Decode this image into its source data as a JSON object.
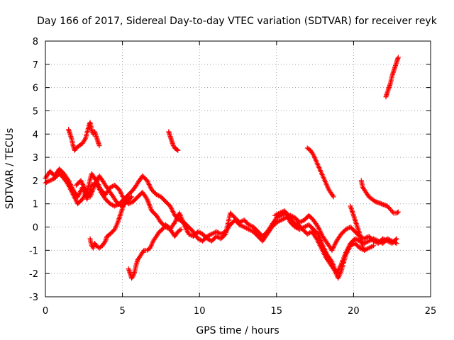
{
  "chart_data": {
    "type": "scatter",
    "title": "Day 166 of 2017, Sidereal Day-to-day VTEC variation (SDTVAR) for receiver reyk",
    "xlabel": "GPS time / hours",
    "ylabel": "SDTVAR / TECUs",
    "xlim": [
      0,
      25
    ],
    "ylim": [
      -3,
      8
    ],
    "xticks": [
      0,
      5,
      10,
      15,
      20,
      25
    ],
    "yticks": [
      -3,
      -2,
      -1,
      0,
      1,
      2,
      3,
      4,
      5,
      6,
      7,
      8
    ],
    "grid": true,
    "marker": "+",
    "color": "#ff0000",
    "series": [
      {
        "name": "arc-main-upper",
        "points": [
          [
            0.0,
            2.1
          ],
          [
            0.3,
            2.4
          ],
          [
            0.6,
            2.2
          ],
          [
            0.9,
            2.5
          ],
          [
            1.2,
            2.3
          ],
          [
            1.5,
            2.0
          ],
          [
            1.8,
            1.6
          ],
          [
            2.1,
            1.3
          ],
          [
            2.4,
            1.7
          ],
          [
            2.7,
            1.2
          ],
          [
            3.0,
            1.8
          ],
          [
            3.3,
            1.9
          ],
          [
            3.6,
            1.5
          ],
          [
            3.9,
            1.2
          ],
          [
            4.2,
            1.0
          ],
          [
            4.5,
            0.9
          ],
          [
            4.8,
            1.0
          ],
          [
            5.1,
            1.2
          ],
          [
            5.4,
            1.4
          ],
          [
            5.7,
            1.6
          ],
          [
            6.0,
            1.9
          ],
          [
            6.3,
            2.2
          ],
          [
            6.6,
            2.0
          ],
          [
            6.9,
            1.6
          ],
          [
            7.2,
            1.4
          ],
          [
            7.5,
            1.3
          ],
          [
            7.8,
            1.1
          ],
          [
            8.1,
            0.9
          ],
          [
            8.4,
            0.5
          ],
          [
            8.7,
            0.3
          ],
          [
            9.0,
            0.2
          ],
          [
            9.3,
            0.0
          ],
          [
            9.6,
            -0.2
          ],
          [
            9.9,
            -0.5
          ],
          [
            10.2,
            -0.6
          ],
          [
            10.5,
            -0.4
          ],
          [
            10.8,
            -0.3
          ],
          [
            11.1,
            -0.2
          ],
          [
            11.4,
            -0.3
          ],
          [
            11.7,
            -0.2
          ],
          [
            12.0,
            0.1
          ],
          [
            12.3,
            0.3
          ],
          [
            12.6,
            0.1
          ],
          [
            12.9,
            0.0
          ],
          [
            13.2,
            -0.1
          ],
          [
            13.5,
            -0.2
          ],
          [
            13.8,
            -0.4
          ],
          [
            14.1,
            -0.6
          ],
          [
            14.4,
            -0.3
          ],
          [
            14.7,
            0.0
          ],
          [
            15.0,
            0.2
          ],
          [
            15.3,
            0.3
          ],
          [
            15.6,
            0.4
          ],
          [
            15.9,
            0.5
          ],
          [
            16.2,
            0.4
          ],
          [
            16.5,
            0.2
          ],
          [
            16.8,
            0.3
          ],
          [
            17.1,
            0.5
          ],
          [
            17.4,
            0.3
          ],
          [
            17.7,
            0.0
          ],
          [
            18.0,
            -0.4
          ],
          [
            18.3,
            -0.7
          ],
          [
            18.6,
            -1.0
          ],
          [
            18.9,
            -0.6
          ],
          [
            19.2,
            -0.3
          ],
          [
            19.5,
            -0.1
          ],
          [
            19.8,
            0.0
          ],
          [
            20.1,
            -0.2
          ],
          [
            20.4,
            -0.4
          ],
          [
            20.7,
            -0.5
          ],
          [
            21.0,
            -0.4
          ],
          [
            21.3,
            -0.6
          ],
          [
            21.6,
            -0.7
          ],
          [
            21.9,
            -0.5
          ],
          [
            22.2,
            -0.6
          ],
          [
            22.5,
            -0.7
          ],
          [
            22.8,
            -0.5
          ]
        ]
      },
      {
        "name": "arc-main-lower",
        "points": [
          [
            0.0,
            1.9
          ],
          [
            0.3,
            2.0
          ],
          [
            0.6,
            2.1
          ],
          [
            0.9,
            2.3
          ],
          [
            1.2,
            2.1
          ],
          [
            1.5,
            1.8
          ],
          [
            1.8,
            1.4
          ],
          [
            2.1,
            1.0
          ],
          [
            2.4,
            1.2
          ],
          [
            2.7,
            1.5
          ],
          [
            3.0,
            2.3
          ],
          [
            3.3,
            2.0
          ],
          [
            3.6,
            1.6
          ],
          [
            3.9,
            1.4
          ],
          [
            4.2,
            1.7
          ],
          [
            4.5,
            1.8
          ],
          [
            4.8,
            1.6
          ],
          [
            5.1,
            1.2
          ],
          [
            5.4,
            1.0
          ],
          [
            5.7,
            1.1
          ],
          [
            6.0,
            1.3
          ],
          [
            6.3,
            1.5
          ],
          [
            6.6,
            1.2
          ],
          [
            6.9,
            0.7
          ],
          [
            7.2,
            0.5
          ],
          [
            7.5,
            0.2
          ],
          [
            7.8,
            0.0
          ],
          [
            8.1,
            -0.1
          ],
          [
            8.4,
            0.2
          ],
          [
            8.7,
            0.6
          ],
          [
            9.0,
            0.1
          ],
          [
            9.3,
            -0.3
          ],
          [
            9.6,
            -0.4
          ],
          [
            9.9,
            -0.2
          ],
          [
            10.2,
            -0.3
          ],
          [
            10.5,
            -0.5
          ],
          [
            10.8,
            -0.6
          ],
          [
            11.1,
            -0.4
          ],
          [
            11.4,
            -0.5
          ],
          [
            11.7,
            -0.3
          ],
          [
            12.0,
            0.6
          ],
          [
            12.3,
            0.4
          ],
          [
            12.6,
            0.2
          ],
          [
            12.9,
            0.3
          ],
          [
            13.2,
            0.1
          ],
          [
            13.5,
            0.0
          ],
          [
            13.8,
            -0.2
          ],
          [
            14.1,
            -0.4
          ],
          [
            14.4,
            -0.2
          ],
          [
            14.7,
            0.1
          ],
          [
            15.0,
            0.4
          ],
          [
            15.3,
            0.5
          ],
          [
            15.6,
            0.6
          ],
          [
            15.9,
            0.2
          ],
          [
            16.2,
            0.0
          ],
          [
            16.5,
            -0.1
          ],
          [
            16.8,
            0.0
          ],
          [
            17.1,
            0.1
          ],
          [
            17.4,
            -0.1
          ],
          [
            17.7,
            -0.3
          ],
          [
            18.0,
            -0.8
          ],
          [
            18.3,
            -1.2
          ],
          [
            18.6,
            -1.5
          ],
          [
            18.9,
            -2.0
          ],
          [
            19.2,
            -1.6
          ],
          [
            19.5,
            -1.1
          ],
          [
            19.8,
            -0.7
          ],
          [
            20.1,
            -0.5
          ],
          [
            20.4,
            -0.6
          ],
          [
            20.7,
            -0.7
          ],
          [
            21.0,
            -0.6
          ],
          [
            21.3,
            -0.5
          ],
          [
            21.6,
            -0.6
          ],
          [
            21.9,
            -0.7
          ],
          [
            22.2,
            -0.5
          ],
          [
            22.5,
            -0.6
          ],
          [
            22.8,
            -0.7
          ]
        ]
      },
      {
        "name": "arc-mid-crossing",
        "points": [
          [
            14.9,
            0.5
          ],
          [
            15.2,
            0.6
          ],
          [
            15.5,
            0.7
          ],
          [
            15.8,
            0.5
          ],
          [
            16.1,
            0.2
          ],
          [
            16.4,
            0.1
          ],
          [
            16.7,
            -0.1
          ],
          [
            17.0,
            -0.3
          ],
          [
            17.3,
            -0.2
          ],
          [
            17.6,
            -0.5
          ],
          [
            17.9,
            -0.9
          ],
          [
            18.2,
            -1.3
          ],
          [
            18.5,
            -1.6
          ],
          [
            18.8,
            -1.9
          ],
          [
            19.0,
            -2.2
          ],
          [
            19.2,
            -1.9
          ],
          [
            19.5,
            -1.2
          ],
          [
            19.8,
            -0.8
          ],
          [
            20.1,
            -0.7
          ],
          [
            20.4,
            -0.9
          ],
          [
            20.7,
            -1.0
          ],
          [
            21.0,
            -0.9
          ],
          [
            21.3,
            -0.8
          ]
        ]
      },
      {
        "name": "arc-rise-2",
        "points": [
          [
            2.0,
            1.8
          ],
          [
            2.3,
            2.0
          ],
          [
            2.6,
            1.6
          ],
          [
            2.9,
            1.3
          ],
          [
            3.2,
            1.8
          ],
          [
            3.5,
            2.2
          ],
          [
            3.8,
            1.9
          ],
          [
            4.1,
            1.6
          ],
          [
            4.4,
            1.3
          ],
          [
            4.7,
            1.0
          ],
          [
            5.0,
            0.9
          ],
          [
            5.3,
            1.1
          ],
          [
            5.6,
            1.3
          ]
        ]
      },
      {
        "name": "arc-top-left",
        "points": [
          [
            1.5,
            4.2
          ],
          [
            1.6,
            4.0
          ],
          [
            1.7,
            3.8
          ],
          [
            1.8,
            3.5
          ],
          [
            1.9,
            3.3
          ],
          [
            2.0,
            3.4
          ],
          [
            2.2,
            3.5
          ],
          [
            2.4,
            3.6
          ],
          [
            2.6,
            3.8
          ],
          [
            2.8,
            4.3
          ],
          [
            2.9,
            4.5
          ],
          [
            3.0,
            4.2
          ],
          [
            3.1,
            4.0
          ],
          [
            3.2,
            4.1
          ],
          [
            3.3,
            3.9
          ],
          [
            3.4,
            3.7
          ],
          [
            3.5,
            3.5
          ]
        ]
      },
      {
        "name": "arc-upper-mid",
        "points": [
          [
            8.0,
            4.1
          ],
          [
            8.1,
            3.9
          ],
          [
            8.2,
            3.7
          ],
          [
            8.3,
            3.5
          ],
          [
            8.4,
            3.4
          ],
          [
            8.5,
            3.35
          ],
          [
            8.6,
            3.3
          ]
        ]
      },
      {
        "name": "arc-low-left",
        "points": [
          [
            2.9,
            -0.5
          ],
          [
            3.0,
            -0.8
          ],
          [
            3.1,
            -0.9
          ],
          [
            3.2,
            -0.7
          ],
          [
            3.3,
            -0.8
          ],
          [
            3.5,
            -0.9
          ],
          [
            3.7,
            -0.8
          ],
          [
            3.9,
            -0.6
          ],
          [
            4.0,
            -0.4
          ],
          [
            4.2,
            -0.3
          ],
          [
            4.5,
            -0.1
          ],
          [
            4.7,
            0.2
          ],
          [
            4.9,
            0.6
          ],
          [
            5.1,
            1.0
          ],
          [
            5.3,
            1.3
          ]
        ]
      },
      {
        "name": "arc-low-center",
        "points": [
          [
            5.4,
            -1.8
          ],
          [
            5.5,
            -2.0
          ],
          [
            5.6,
            -2.2
          ],
          [
            5.7,
            -2.1
          ],
          [
            5.8,
            -1.9
          ],
          [
            5.9,
            -1.6
          ],
          [
            6.0,
            -1.4
          ],
          [
            6.2,
            -1.2
          ],
          [
            6.4,
            -1.0
          ],
          [
            6.6,
            -1.0
          ],
          [
            6.8,
            -0.9
          ],
          [
            7.0,
            -0.6
          ],
          [
            7.2,
            -0.4
          ],
          [
            7.4,
            -0.2
          ],
          [
            7.6,
            -0.1
          ],
          [
            7.8,
            0.1
          ],
          [
            8.0,
            0.0
          ],
          [
            8.2,
            -0.2
          ],
          [
            8.4,
            -0.4
          ],
          [
            8.6,
            -0.2
          ],
          [
            8.8,
            -0.1
          ]
        ]
      },
      {
        "name": "arc-high-right",
        "points": [
          [
            17.0,
            3.4
          ],
          [
            17.2,
            3.3
          ],
          [
            17.4,
            3.1
          ],
          [
            17.6,
            2.8
          ],
          [
            17.8,
            2.5
          ],
          [
            18.0,
            2.2
          ],
          [
            18.2,
            1.9
          ],
          [
            18.4,
            1.6
          ],
          [
            18.6,
            1.4
          ],
          [
            18.7,
            1.3
          ]
        ]
      },
      {
        "name": "arc-right-descend",
        "points": [
          [
            20.5,
            2.0
          ],
          [
            20.6,
            1.7
          ],
          [
            20.8,
            1.5
          ],
          [
            21.0,
            1.3
          ],
          [
            21.2,
            1.2
          ],
          [
            21.4,
            1.1
          ],
          [
            21.6,
            1.05
          ],
          [
            21.8,
            1.0
          ],
          [
            22.0,
            0.95
          ],
          [
            22.2,
            0.9
          ],
          [
            22.4,
            0.75
          ],
          [
            22.6,
            0.6
          ],
          [
            22.8,
            0.6
          ],
          [
            22.9,
            0.65
          ]
        ]
      },
      {
        "name": "arc-top-right",
        "points": [
          [
            22.1,
            5.6
          ],
          [
            22.2,
            5.8
          ],
          [
            22.3,
            6.0
          ],
          [
            22.4,
            6.2
          ],
          [
            22.5,
            6.5
          ],
          [
            22.6,
            6.7
          ],
          [
            22.7,
            6.9
          ],
          [
            22.8,
            7.1
          ],
          [
            22.9,
            7.3
          ]
        ]
      },
      {
        "name": "arc-right-mid",
        "points": [
          [
            19.8,
            0.9
          ],
          [
            20.0,
            0.5
          ],
          [
            20.2,
            0.1
          ],
          [
            20.4,
            -0.3
          ],
          [
            20.5,
            -0.6
          ],
          [
            20.6,
            -0.9
          ],
          [
            20.7,
            -1.0
          ]
        ]
      }
    ]
  }
}
